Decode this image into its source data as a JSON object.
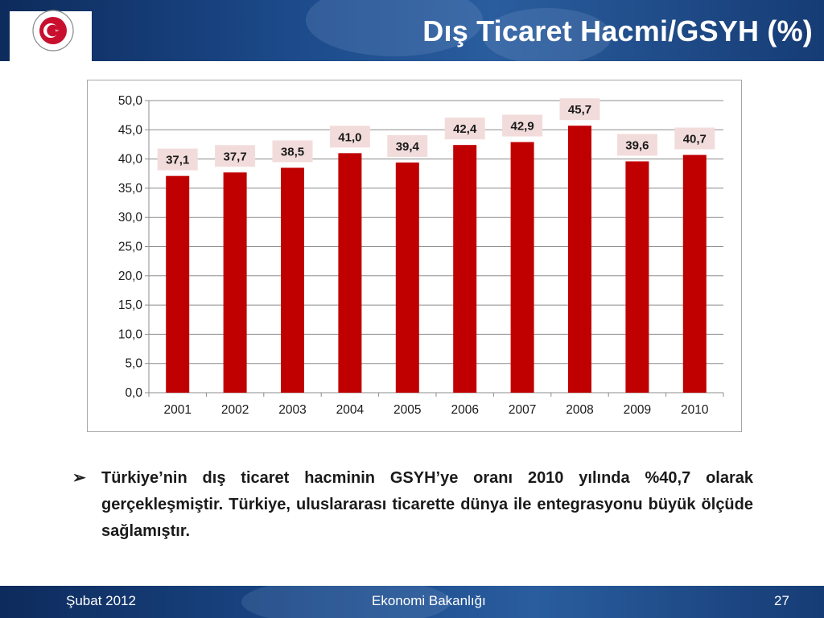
{
  "header": {
    "title": "Dış Ticaret Hacmi/GSYH (%)",
    "logo_text": "REPUBLIC OF TURKEY · MINISTRY OF ECONOMY"
  },
  "chart_data": {
    "type": "bar",
    "categories": [
      "2001",
      "2002",
      "2003",
      "2004",
      "2005",
      "2006",
      "2007",
      "2008",
      "2009",
      "2010"
    ],
    "values": [
      37.1,
      37.7,
      38.5,
      41.0,
      39.4,
      42.4,
      42.9,
      45.7,
      39.6,
      40.7
    ],
    "value_labels": [
      "37,1",
      "37,7",
      "38,5",
      "41,0",
      "39,4",
      "42,4",
      "42,9",
      "45,7",
      "39,6",
      "40,7"
    ],
    "yticks": [
      0,
      5,
      10,
      15,
      20,
      25,
      30,
      35,
      40,
      45,
      50
    ],
    "ytick_labels": [
      "0,0",
      "5,0",
      "10,0",
      "15,0",
      "20,0",
      "25,0",
      "30,0",
      "35,0",
      "40,0",
      "45,0",
      "50,0"
    ],
    "ylim": [
      0,
      50
    ],
    "grid": true,
    "legend": "none",
    "title": "",
    "xlabel": "",
    "ylabel": "",
    "bar_color": "#c00000",
    "label_bg_color": "#f2dcdb"
  },
  "note": {
    "bullet": "➢",
    "text": "Türkiye’nin dış ticaret hacminin GSYH’ye oranı 2010 yılında %40,7 olarak gerçekleşmiştir. Türkiye, uluslararası ticarette dünya ile entegrasyonu büyük ölçüde sağlamıştır."
  },
  "footer": {
    "date": "Şubat 2012",
    "org": "Ekonomi Bakanlığı",
    "page": "27"
  },
  "colors": {
    "header_bg": "#1c4a8a",
    "logo_red": "#c8102e"
  }
}
